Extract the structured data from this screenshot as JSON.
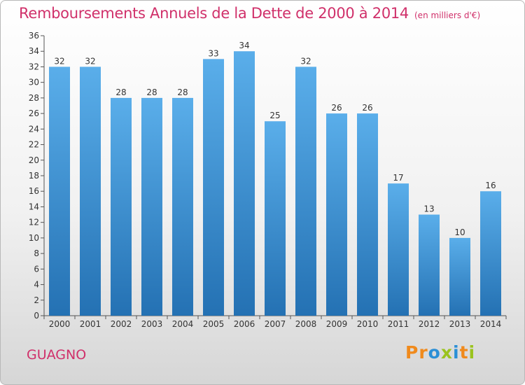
{
  "header": {
    "title": "Remboursements Annuels de la Dette de 2000 à 2014",
    "unit": "(en milliers d'€)"
  },
  "footer": {
    "commune": "GUAGNO",
    "logo": [
      "P",
      "r",
      "o",
      "x",
      "i",
      "t",
      "i"
    ]
  },
  "colors": {
    "title": "#d0306a",
    "bar_top": "#5aaeea",
    "bar_bottom": "#2471b3",
    "logo": [
      "#f08a1c",
      "#f08a1c",
      "#2b8fd6",
      "#9bc31e",
      "#2b8fd6",
      "#f08a1c",
      "#9bc31e"
    ]
  },
  "chart_data": {
    "type": "bar",
    "title": "Remboursements Annuels de la Dette de 2000 à 2014",
    "xlabel": "",
    "ylabel": "",
    "categories": [
      "2000",
      "2001",
      "2002",
      "2003",
      "2004",
      "2005",
      "2006",
      "2007",
      "2008",
      "2009",
      "2010",
      "2011",
      "2012",
      "2013",
      "2014"
    ],
    "values": [
      32,
      32,
      28,
      28,
      28,
      33,
      34,
      25,
      32,
      26,
      26,
      17,
      13,
      10,
      16
    ],
    "ylim": [
      0,
      36
    ],
    "yticks": [
      0,
      2,
      4,
      6,
      8,
      10,
      12,
      14,
      16,
      18,
      20,
      22,
      24,
      26,
      28,
      30,
      32,
      34,
      36
    ],
    "grid": false,
    "legend": "none"
  }
}
